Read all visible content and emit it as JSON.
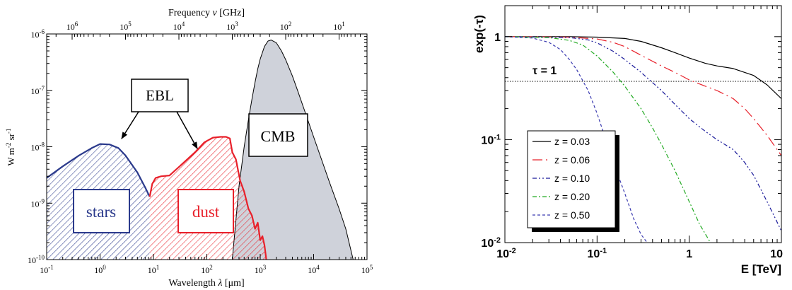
{
  "chart_data": [
    {
      "type": "area",
      "title": "",
      "xlabel_prefix": "Wavelength ",
      "xlabel_symbol": "λ",
      "xlabel_suffix": " [μm]",
      "top_axis_label_prefix": "Frequency ",
      "top_axis_label_symbol": "ν",
      "top_axis_label_suffix": " [GHz]",
      "ylabel_parts": [
        "W m",
        "-2",
        " sr",
        "-1"
      ],
      "x_scale": "log",
      "y_scale": "log",
      "xlim": [
        0.1,
        100000
      ],
      "ylim": [
        1e-10,
        1e-06
      ],
      "x_ticks": [
        {
          "v": 0.1,
          "mant": "10",
          "exp": "-1"
        },
        {
          "v": 1,
          "mant": "10",
          "exp": "0"
        },
        {
          "v": 10,
          "mant": "10",
          "exp": "1"
        },
        {
          "v": 100,
          "mant": "10",
          "exp": "2"
        },
        {
          "v": 1000,
          "mant": "10",
          "exp": "3"
        },
        {
          "v": 10000,
          "mant": "10",
          "exp": "4"
        },
        {
          "v": 100000,
          "mant": "10",
          "exp": "5"
        }
      ],
      "y_ticks": [
        {
          "v": 1e-10,
          "mant": "10",
          "exp": "-10"
        },
        {
          "v": 1e-09,
          "mant": "10",
          "exp": "-9"
        },
        {
          "v": 1e-08,
          "mant": "10",
          "exp": "-8"
        },
        {
          "v": 1e-07,
          "mant": "10",
          "exp": "-7"
        },
        {
          "v": 1e-06,
          "mant": "10",
          "exp": "-6"
        }
      ],
      "top_ticks": [
        {
          "ghz": 1000000,
          "mant": "10",
          "exp": "6"
        },
        {
          "ghz": 100000,
          "mant": "10",
          "exp": "5"
        },
        {
          "ghz": 10000,
          "mant": "10",
          "exp": "4"
        },
        {
          "ghz": 1000,
          "mant": "10",
          "exp": "3"
        },
        {
          "ghz": 100,
          "mant": "10",
          "exp": "2"
        },
        {
          "ghz": 10,
          "mant": "10",
          "exp": "1"
        }
      ],
      "series": [
        {
          "name": "stars",
          "color": "#2b3a8c",
          "fill": "hatch-blue",
          "x": [
            0.1,
            0.2,
            0.4,
            0.7,
            1.0,
            1.5,
            2.2,
            3.0,
            5.0,
            7.0,
            8.5
          ],
          "y": [
            2.8e-09,
            4.5e-09,
            7e-09,
            9.5e-09,
            1.12e-08,
            1.1e-08,
            9.5e-09,
            7e-09,
            3.5e-09,
            1.9e-09,
            1.3e-09
          ]
        },
        {
          "name": "dust",
          "color": "#e8202a",
          "fill": "hatch-red",
          "x": [
            8.5,
            9.5,
            11,
            14,
            20,
            35,
            60,
            90,
            130,
            180,
            230,
            270,
            300,
            350,
            420,
            500,
            600,
            700,
            800,
            900,
            1000,
            1100,
            1200,
            1300
          ],
          "y": [
            1.3e-09,
            2.2e-09,
            2.8e-09,
            3e-09,
            3.1e-09,
            5e-09,
            8e-09,
            1.2e-08,
            1.45e-08,
            1.5e-08,
            1.5e-08,
            1.4e-08,
            8e-09,
            6e-09,
            2.5e-09,
            1.6e-09,
            8e-10,
            6e-10,
            3.5e-10,
            4.5e-10,
            2.2e-10,
            2.6e-10,
            1.8e-10,
            1e-10
          ]
        },
        {
          "name": "CMB",
          "color": "#000000",
          "fill": "#cfd2da",
          "x": [
            300,
            400,
            500,
            600,
            700,
            800,
            900,
            1000,
            1200,
            1400,
            1600,
            2000,
            2500,
            3000,
            4000,
            5000,
            7000,
            10000,
            15000,
            20000,
            30000,
            40000,
            55000
          ],
          "y": [
            1e-10,
            2e-09,
            1e-08,
            3e-08,
            7e-08,
            1.4e-07,
            2.4e-07,
            3.6e-07,
            6e-07,
            7.5e-07,
            7.8e-07,
            7e-07,
            5e-07,
            3.5e-07,
            1.8e-07,
            1e-07,
            4e-08,
            1.5e-08,
            5e-09,
            2.3e-09,
            8e-10,
            3.5e-10,
            1e-10
          ]
        }
      ],
      "annotations": [
        {
          "name": "stars-label",
          "text": "stars"
        },
        {
          "name": "dust-label",
          "text": "dust"
        },
        {
          "name": "cmb-label",
          "text": "CMB"
        },
        {
          "name": "ebl-label",
          "text": "EBL"
        }
      ]
    },
    {
      "type": "line",
      "title": "",
      "ylabel": "exp(-τ)",
      "xlabel": "E [TeV]",
      "x_scale": "log",
      "y_scale": "log",
      "xlim": [
        0.01,
        10
      ],
      "ylim": [
        0.01,
        2
      ],
      "x_ticks": [
        {
          "v": 0.01,
          "mant": "10",
          "exp": "-2"
        },
        {
          "v": 0.1,
          "mant": "10",
          "exp": "-1"
        },
        {
          "v": 1,
          "mant": "1",
          "exp": ""
        },
        {
          "v": 10,
          "mant": "10",
          "exp": ""
        }
      ],
      "y_ticks": [
        {
          "v": 0.01,
          "mant": "10",
          "exp": "-2"
        },
        {
          "v": 0.1,
          "mant": "10",
          "exp": "-1"
        },
        {
          "v": 1,
          "mant": "1",
          "exp": ""
        }
      ],
      "reference_line": {
        "label": "τ = 1",
        "y": 0.368
      },
      "series": [
        {
          "name": "z = 0.03",
          "color": "#000000",
          "dash": "",
          "x": [
            0.01,
            0.05,
            0.1,
            0.2,
            0.3,
            0.5,
            0.7,
            1,
            1.5,
            2,
            3,
            5,
            7,
            10
          ],
          "y": [
            1,
            1,
            0.99,
            0.96,
            0.9,
            0.78,
            0.7,
            0.62,
            0.55,
            0.52,
            0.49,
            0.42,
            0.34,
            0.25
          ]
        },
        {
          "name": "z = 0.06",
          "color": "#e8202a",
          "dash": "14,5,2,5",
          "x": [
            0.01,
            0.05,
            0.1,
            0.15,
            0.2,
            0.3,
            0.5,
            0.7,
            1,
            1.5,
            2,
            3,
            4,
            5,
            7,
            10
          ],
          "y": [
            1,
            0.99,
            0.95,
            0.88,
            0.8,
            0.66,
            0.52,
            0.45,
            0.38,
            0.33,
            0.3,
            0.25,
            0.2,
            0.16,
            0.11,
            0.07
          ]
        },
        {
          "name": "z = 0.10",
          "color": "#1a1a9a",
          "dash": "6,3,2,3,2,3",
          "x": [
            0.01,
            0.05,
            0.08,
            0.1,
            0.15,
            0.2,
            0.3,
            0.5,
            0.7,
            1,
            1.5,
            2,
            3,
            4,
            5,
            7,
            10
          ],
          "y": [
            1,
            0.98,
            0.93,
            0.87,
            0.72,
            0.6,
            0.45,
            0.3,
            0.22,
            0.16,
            0.12,
            0.1,
            0.08,
            0.06,
            0.045,
            0.025,
            0.013
          ]
        },
        {
          "name": "z = 0.20",
          "color": "#22aa22",
          "dash": "6,3,2,3",
          "x": [
            0.01,
            0.03,
            0.05,
            0.07,
            0.1,
            0.15,
            0.2,
            0.3,
            0.4,
            0.5,
            0.7,
            1,
            1.3,
            1.7
          ],
          "y": [
            1,
            0.98,
            0.92,
            0.83,
            0.65,
            0.45,
            0.33,
            0.2,
            0.13,
            0.09,
            0.05,
            0.025,
            0.015,
            0.01
          ]
        },
        {
          "name": "z = 0.50",
          "color": "#3a3ab0",
          "dash": "4,3",
          "x": [
            0.01,
            0.02,
            0.03,
            0.04,
            0.05,
            0.06,
            0.08,
            0.1,
            0.12,
            0.15,
            0.2,
            0.25,
            0.3,
            0.35
          ],
          "y": [
            1,
            0.97,
            0.88,
            0.75,
            0.6,
            0.48,
            0.3,
            0.18,
            0.11,
            0.06,
            0.03,
            0.017,
            0.012,
            0.01
          ]
        }
      ],
      "legend_position": "bottom-left"
    }
  ]
}
